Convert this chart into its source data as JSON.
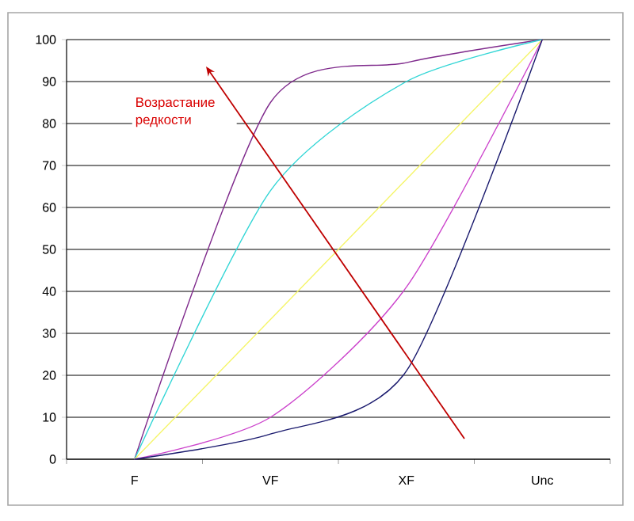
{
  "chart_data": {
    "type": "line",
    "categories": [
      "F",
      "VF",
      "XF",
      "Unc"
    ],
    "series": [
      {
        "color": "#7f2a8c",
        "values": [
          0,
          85,
          94.5,
          100
        ]
      },
      {
        "color": "#33d6d6",
        "values": [
          0,
          64,
          90,
          100
        ]
      },
      {
        "color": "#f5f56a",
        "values": [
          0,
          33.3,
          66.7,
          100
        ]
      },
      {
        "color": "#cc44cc",
        "values": [
          0,
          10,
          41,
          100
        ]
      },
      {
        "color": "#1a1a6e",
        "values": [
          0,
          6,
          21,
          100
        ]
      }
    ],
    "ylim": [
      0,
      100
    ],
    "yticks": [
      0,
      10,
      20,
      30,
      40,
      50,
      60,
      70,
      80,
      90,
      100
    ],
    "grid": "y",
    "marker": "none",
    "line_style": "solid",
    "annotations": [
      "Возрастание редкости"
    ]
  }
}
